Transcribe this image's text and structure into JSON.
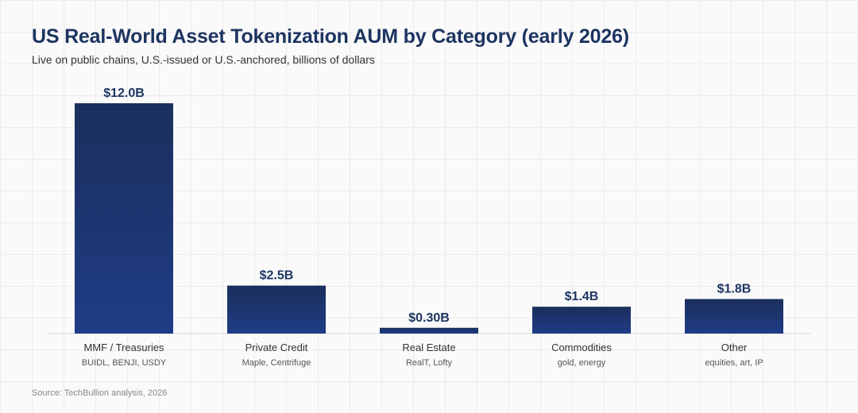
{
  "header": {
    "title": "US Real-World Asset Tokenization AUM by Category (early 2026)",
    "subtitle": "Live on public chains, U.S.-issued or U.S.-anchored, billions of dollars"
  },
  "footer": {
    "source": "Source: TechBullion analysis, 2026"
  },
  "colors": {
    "bar_top": "#1b2f5c",
    "bar_bottom": "#1f3c86",
    "axis": "#d8d8d8"
  },
  "chart_data": {
    "type": "bar",
    "title": "US Real-World Asset Tokenization AUM by Category (early 2026)",
    "subtitle": "Live on public chains, U.S.-issued or U.S.-anchored, billions of dollars",
    "categories": [
      "MMF / Treasuries",
      "Private Credit",
      "Real Estate",
      "Commodities",
      "Other"
    ],
    "subcategories": [
      "BUIDL, BENJI, USDY",
      "Maple, Centrifuge",
      "RealT, Lofty",
      "gold, energy",
      "equities, art, IP"
    ],
    "values": [
      12.0,
      2.5,
      0.3,
      1.4,
      1.8
    ],
    "value_labels": [
      "$12.0B",
      "$2.5B",
      "$0.30B",
      "$1.4B",
      "$1.8B"
    ],
    "unit": "billions of dollars",
    "ylim": [
      0,
      12.0
    ],
    "grid": true,
    "legend": "none"
  }
}
